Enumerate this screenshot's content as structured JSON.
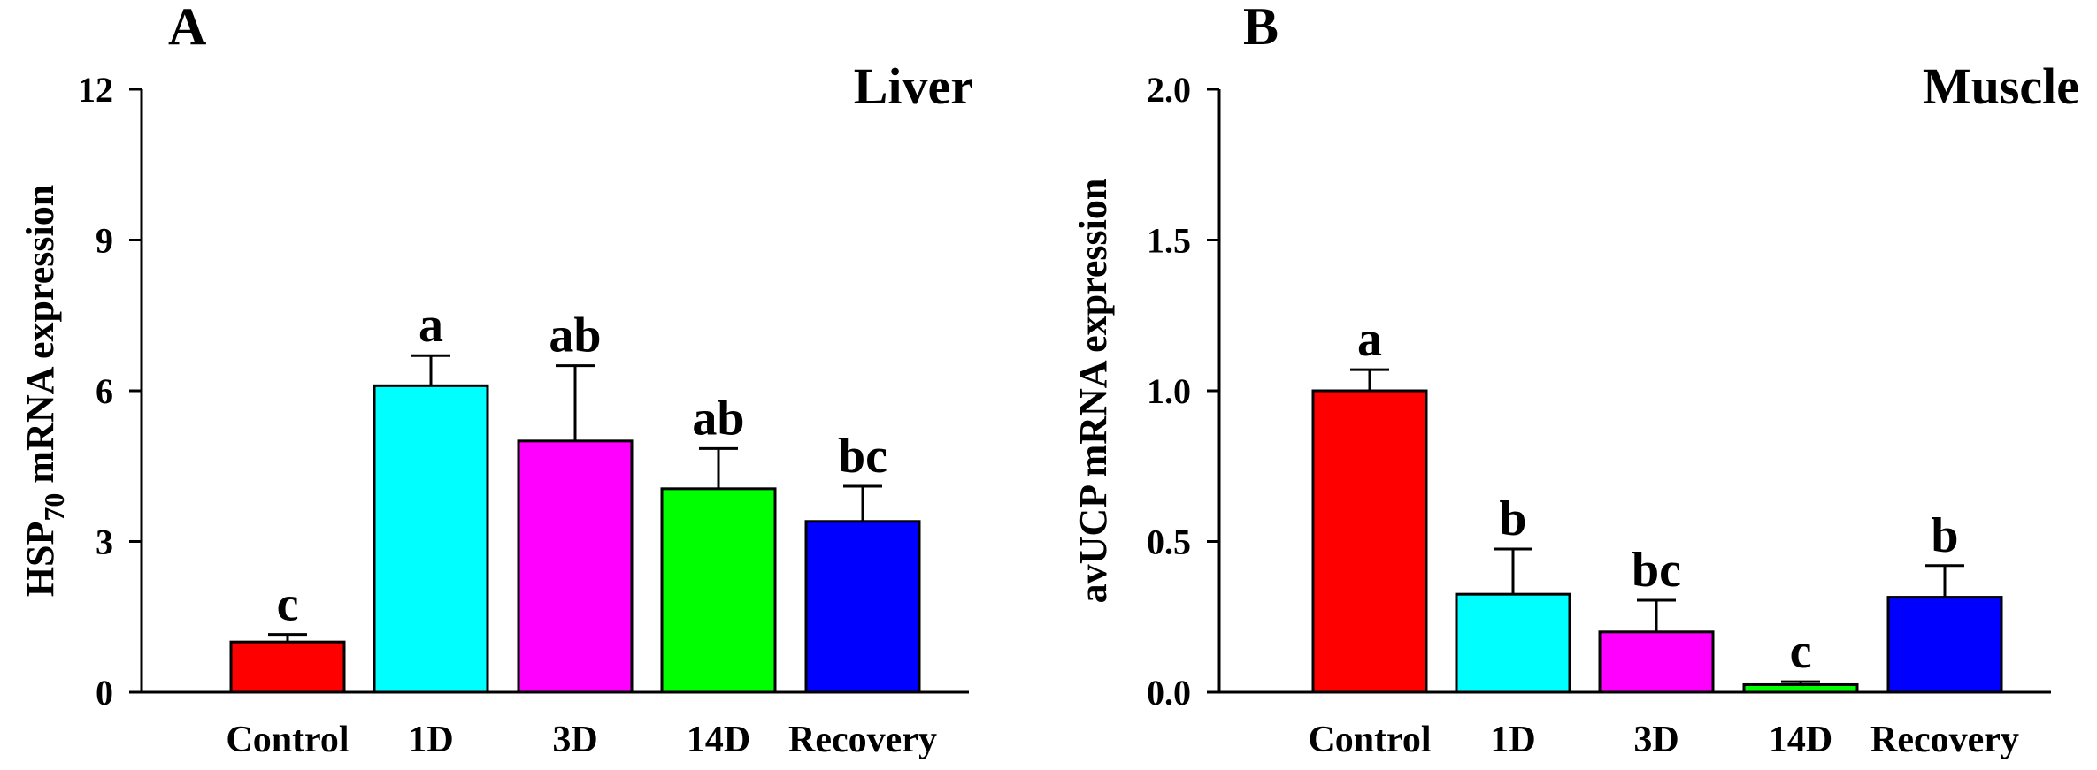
{
  "chart_data": [
    {
      "type": "bar",
      "panel_label": "A",
      "title": "Liver",
      "ylabel": {
        "main": "HSP",
        "sub": "70",
        "rest": " mRNA expression"
      },
      "ylim": [
        0,
        12
      ],
      "yticks": [
        0,
        3,
        6,
        9,
        12
      ],
      "categories": [
        "Control",
        "1D",
        "3D",
        "14D",
        "Recovery"
      ],
      "values": [
        1.0,
        6.1,
        5.0,
        4.05,
        3.4
      ],
      "errors": [
        0.15,
        0.6,
        1.5,
        0.8,
        0.7
      ],
      "significance": [
        "c",
        "a",
        "ab",
        "ab",
        "bc"
      ],
      "colors": [
        "#ff0000",
        "#00ffff",
        "#ff00ff",
        "#00ff00",
        "#0000ff"
      ]
    },
    {
      "type": "bar",
      "panel_label": "B",
      "title": "Muscle",
      "ylabel": {
        "main": "avUCP mRNA expression",
        "sub": "",
        "rest": ""
      },
      "ylim": [
        0,
        2.0
      ],
      "yticks": [
        "0.0",
        "0.5",
        "1.0",
        "1.5",
        "2.0"
      ],
      "categories": [
        "Control",
        "1D",
        "3D",
        "14D",
        "Recovery"
      ],
      "values": [
        1.0,
        0.325,
        0.2,
        0.025,
        0.315
      ],
      "errors": [
        0.07,
        0.15,
        0.105,
        0.01,
        0.105
      ],
      "significance": [
        "a",
        "b",
        "bc",
        "c",
        "b"
      ],
      "colors": [
        "#ff0000",
        "#00ffff",
        "#ff00ff",
        "#00ff00",
        "#0000ff"
      ]
    }
  ]
}
